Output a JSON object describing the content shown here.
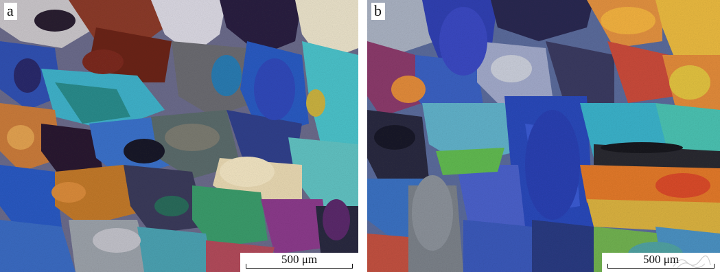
{
  "panels": [
    {
      "label": "a",
      "scale_text": "500 μm"
    },
    {
      "label": "b",
      "scale_text": "500 μm"
    }
  ],
  "colors": {
    "blue": "#2f5fbf",
    "cyan": "#3fb8c8",
    "purple": "#3a2a7a",
    "orange": "#d08a3a",
    "brown": "#5a2a1a",
    "grey": "#9a9aa0",
    "cream": "#e8ddc2",
    "yellow": "#e0c040",
    "green": "#3a9a7a",
    "red": "#c8402a"
  }
}
